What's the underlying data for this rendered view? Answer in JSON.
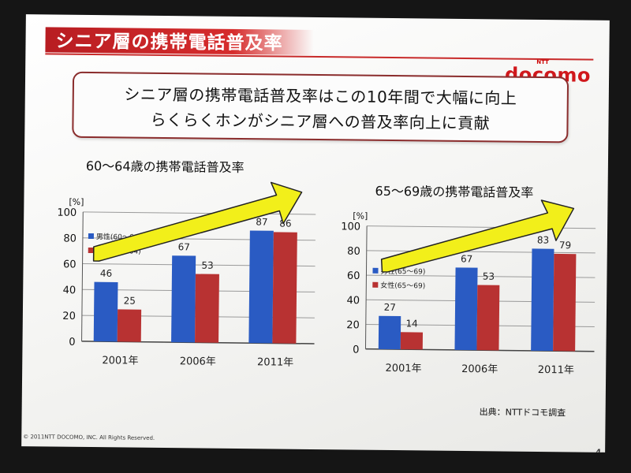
{
  "slide": {
    "title": "シニア層の携帯電話普及率",
    "brand": "docomo",
    "brand_small": "NTT",
    "headline_line1": "シニア層の携帯電話普及率はこの10年間で大幅に向上",
    "headline_line2": "らくらくホンがシニア層への普及率向上に貢献",
    "source": "出典：NTTドコモ調査",
    "copyright": "© 2011NTT DOCOMO, INC. All Rights Reserved.",
    "page_number": "4"
  },
  "colors": {
    "male": "#2a5bc3",
    "female": "#b83232",
    "arrow_fill": "#f2ef1a",
    "title_bar": "#c82a2a"
  },
  "chart_data": [
    {
      "type": "bar",
      "title": "60～64歳の携帯電話普及率",
      "ylabel": "[%]",
      "ylim": [
        0,
        100
      ],
      "yticks": [
        0,
        20,
        40,
        60,
        80,
        100
      ],
      "categories": [
        "2001年",
        "2006年",
        "2011年"
      ],
      "series": [
        {
          "name": "男性(60～64)",
          "values": [
            46,
            67,
            87
          ]
        },
        {
          "name": "女性(60～64)",
          "values": [
            25,
            53,
            86
          ]
        }
      ],
      "grid": true,
      "legend": "top-left"
    },
    {
      "type": "bar",
      "title": "65～69歳の携帯電話普及率",
      "ylabel": "[%]",
      "ylim": [
        0,
        100
      ],
      "yticks": [
        0,
        20,
        40,
        60,
        80,
        100
      ],
      "categories": [
        "2001年",
        "2006年",
        "2011年"
      ],
      "series": [
        {
          "name": "男性(65～69)",
          "values": [
            27,
            67,
            83
          ]
        },
        {
          "name": "女性(65～69)",
          "values": [
            14,
            53,
            79
          ]
        }
      ],
      "grid": true,
      "legend": "center-left"
    }
  ]
}
